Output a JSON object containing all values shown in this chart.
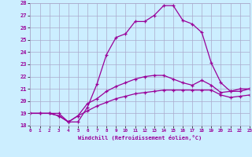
{
  "xlabel": "Windchill (Refroidissement éolien,°C)",
  "background_color": "#cceeff",
  "grid_color": "#aaaacc",
  "line_color": "#990099",
  "xlim": [
    0,
    23
  ],
  "ylim": [
    18,
    28
  ],
  "yticks": [
    18,
    19,
    20,
    21,
    22,
    23,
    24,
    25,
    26,
    27,
    28
  ],
  "xticks": [
    0,
    1,
    2,
    3,
    4,
    5,
    6,
    7,
    8,
    9,
    10,
    11,
    12,
    13,
    14,
    15,
    16,
    17,
    18,
    19,
    20,
    21,
    22,
    23
  ],
  "line1_x": [
    0,
    1,
    2,
    3,
    4,
    5,
    6,
    7,
    8,
    9,
    10,
    11,
    12,
    13,
    14,
    15,
    16,
    17,
    18,
    19,
    20,
    21,
    22,
    23
  ],
  "line1_y": [
    19,
    19,
    19,
    18.8,
    18.3,
    18.8,
    19.8,
    20.2,
    20.8,
    21.2,
    21.5,
    21.8,
    22.0,
    22.1,
    22.1,
    21.8,
    21.5,
    21.3,
    21.7,
    21.3,
    20.7,
    20.8,
    21.0,
    21.0
  ],
  "line2_x": [
    0,
    3,
    4,
    5,
    6,
    7,
    8,
    9,
    10,
    11,
    12,
    13,
    14,
    15,
    16,
    17,
    18,
    19,
    20,
    21,
    22,
    23
  ],
  "line2_y": [
    19,
    19,
    18.3,
    18.3,
    19.5,
    21.4,
    23.8,
    25.2,
    25.5,
    26.5,
    26.5,
    27.0,
    27.8,
    27.8,
    26.6,
    26.3,
    25.6,
    23.1,
    21.5,
    20.8,
    20.8,
    21.0
  ],
  "line3_x": [
    0,
    1,
    2,
    3,
    4,
    5,
    6,
    7,
    8,
    9,
    10,
    11,
    12,
    13,
    14,
    15,
    16,
    17,
    18,
    19,
    20,
    21,
    22,
    23
  ],
  "line3_y": [
    19,
    19,
    19,
    18.8,
    18.3,
    18.8,
    19.2,
    19.6,
    19.9,
    20.2,
    20.4,
    20.6,
    20.7,
    20.8,
    20.9,
    20.9,
    20.9,
    20.9,
    20.9,
    20.9,
    20.5,
    20.3,
    20.4,
    20.5
  ]
}
